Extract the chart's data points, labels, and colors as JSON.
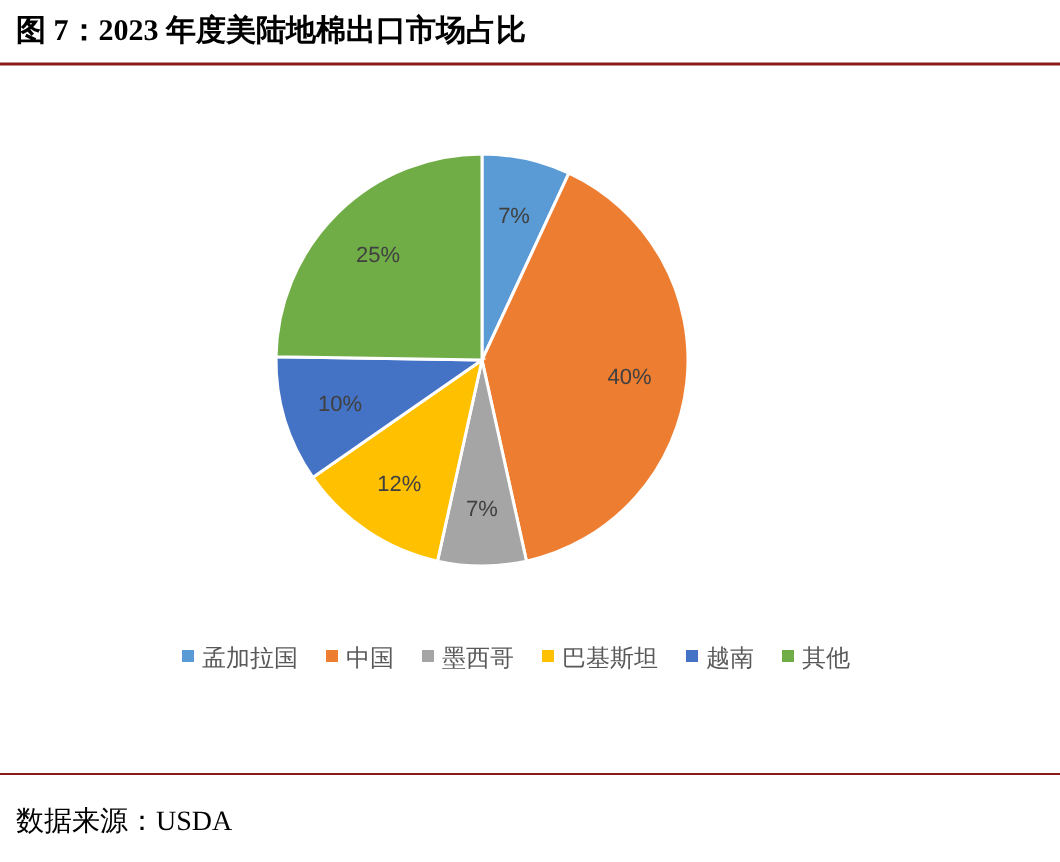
{
  "chart_data": {
    "type": "pie",
    "title": "图 7：2023 年度美陆地棉出口市场占比",
    "categories": [
      "孟加拉国",
      "中国",
      "墨西哥",
      "巴基斯坦",
      "越南",
      "其他"
    ],
    "values": [
      7,
      40,
      7,
      12,
      10,
      25
    ],
    "colors": [
      "#5b9bd5",
      "#ed7d31",
      "#a5a5a5",
      "#ffc000",
      "#4472c4",
      "#70ad47"
    ],
    "value_labels": [
      "7%",
      "40%",
      "7%",
      "12%",
      "10%",
      "25%"
    ],
    "legend": "bottom",
    "annotations": [
      "数据来源：USDA"
    ]
  }
}
